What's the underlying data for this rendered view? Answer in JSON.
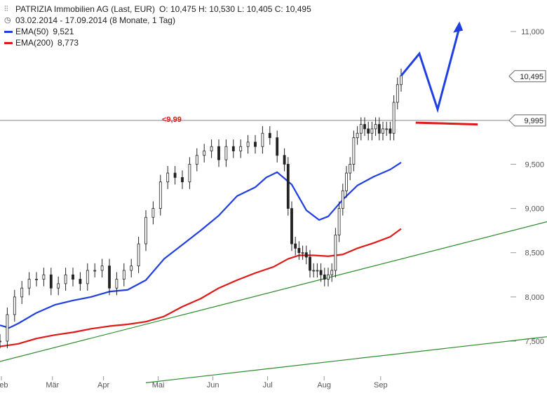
{
  "header": {
    "instrument": "PATRIZIA Immobilien AG (Last, EUR)",
    "ohlc": "O: 10,475  H: 10,530  L: 10,405  C: 10,495",
    "period": "03.02.2014 - 17.09.2014 (8 Monate, 1 Tag)"
  },
  "legend": [
    {
      "name": "EMA(50)",
      "value": "9,521",
      "color": "#1f3fe0"
    },
    {
      "name": "EMA(200)",
      "value": "8,773",
      "color": "#e01818"
    }
  ],
  "chart_data": {
    "type": "line",
    "title": "PATRIZIA Immobilien AG (Last, EUR)",
    "ylim": [
      7.3,
      11.2
    ],
    "y_ticks": [
      "11,000",
      "10,500",
      "10,000",
      "9,500",
      "9,000",
      "8,500",
      "8,000",
      "7,500"
    ],
    "y_tick_values": [
      11.0,
      10.5,
      10.0,
      9.5,
      9.0,
      8.5,
      8.0,
      7.5
    ],
    "x_ticks": [
      "Feb",
      "Mär",
      "Apr",
      "Mai",
      "Jun",
      "Jul",
      "Aug",
      "Sep"
    ],
    "x_tick_days": [
      0,
      28,
      56,
      86,
      116,
      146,
      177,
      208
    ],
    "x_range_days": [
      0,
      300
    ],
    "price_label": "10,495",
    "price_level": 10.495,
    "reference_label": "9,995",
    "reference_level": 9.995,
    "annotation": "<9,99",
    "colors": {
      "candle": "#222222",
      "ema50": "#1f3fe0",
      "ema200": "#e01818",
      "trend": "#2a8a2a",
      "forecast": "#1f3fe0",
      "resistance": "#e01818",
      "reference": "#888888"
    },
    "series": [
      {
        "name": "EMA(50)",
        "x": [
          0,
          5,
          10,
          20,
          30,
          40,
          50,
          60,
          70,
          80,
          90,
          100,
          110,
          120,
          130,
          140,
          146,
          152,
          160,
          168,
          175,
          180,
          188,
          196,
          205,
          214,
          220
        ],
        "y": [
          7.68,
          7.65,
          7.7,
          7.82,
          7.91,
          7.96,
          8.0,
          8.06,
          8.08,
          8.19,
          8.43,
          8.59,
          8.75,
          8.92,
          9.14,
          9.24,
          9.35,
          9.41,
          9.27,
          8.98,
          8.87,
          8.91,
          9.1,
          9.26,
          9.36,
          9.44,
          9.52
        ]
      },
      {
        "name": "EMA(200)",
        "x": [
          0,
          10,
          20,
          30,
          40,
          50,
          60,
          70,
          80,
          90,
          100,
          110,
          120,
          130,
          140,
          150,
          158,
          164,
          172,
          180,
          188,
          196,
          205,
          214,
          220
        ],
        "y": [
          7.44,
          7.47,
          7.53,
          7.57,
          7.6,
          7.64,
          7.67,
          7.69,
          7.72,
          7.78,
          7.89,
          7.98,
          8.1,
          8.19,
          8.27,
          8.34,
          8.43,
          8.47,
          8.47,
          8.46,
          8.48,
          8.55,
          8.61,
          8.68,
          8.77
        ]
      },
      {
        "name": "Close",
        "x": [
          0,
          4,
          8,
          12,
          16,
          20,
          24,
          28,
          32,
          36,
          40,
          44,
          48,
          52,
          56,
          60,
          64,
          68,
          72,
          76,
          80,
          84,
          88,
          92,
          96,
          100,
          104,
          108,
          112,
          116,
          120,
          124,
          128,
          132,
          136,
          140,
          144,
          148,
          152,
          156,
          158,
          160,
          162,
          164,
          166,
          168,
          170,
          172,
          174,
          176,
          178,
          180,
          182,
          184,
          186,
          188,
          190,
          192,
          194,
          196,
          198,
          200,
          202,
          204,
          206,
          208,
          210,
          212,
          214,
          216,
          218,
          220
        ],
        "y": [
          7.5,
          7.8,
          8.0,
          8.1,
          8.2,
          8.2,
          8.25,
          8.1,
          8.15,
          8.25,
          8.2,
          8.15,
          8.3,
          8.3,
          8.35,
          8.1,
          8.2,
          8.3,
          8.35,
          8.6,
          8.9,
          9.0,
          9.3,
          9.4,
          9.35,
          9.3,
          9.5,
          9.6,
          9.65,
          9.7,
          9.55,
          9.7,
          9.65,
          9.7,
          9.75,
          9.7,
          9.85,
          9.8,
          9.6,
          9.5,
          9.0,
          8.6,
          8.55,
          8.5,
          8.5,
          8.45,
          8.3,
          8.3,
          8.3,
          8.25,
          8.2,
          8.25,
          8.3,
          8.7,
          9.0,
          9.2,
          9.4,
          9.5,
          9.8,
          9.85,
          9.95,
          9.9,
          9.85,
          9.9,
          9.95,
          9.85,
          9.9,
          9.9,
          9.85,
          10.2,
          10.4,
          10.5
        ]
      }
    ],
    "forecast": {
      "x": [
        220,
        230,
        240,
        252
      ],
      "y": [
        10.5,
        10.75,
        10.12,
        11.05
      ]
    },
    "resistance": {
      "x": [
        228,
        262
      ],
      "y": [
        9.97,
        9.95
      ]
    },
    "trendlines": [
      {
        "x": [
          0,
          300
        ],
        "y": [
          7.27,
          8.85
        ]
      },
      {
        "x": [
          80,
          300
        ],
        "y": [
          7.03,
          7.55
        ]
      }
    ]
  }
}
